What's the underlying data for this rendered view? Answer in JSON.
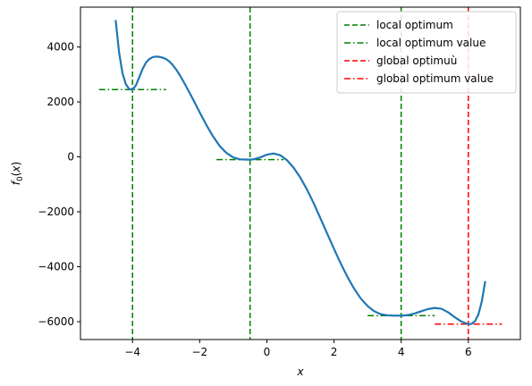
{
  "chart_data": {
    "type": "line",
    "xlabel": "x",
    "ylabel": "f_0(x)",
    "xlim": [
      -5.55,
      7.55
    ],
    "ylim": [
      -6650,
      5450
    ],
    "xticks": [
      -4,
      -2,
      0,
      2,
      4,
      6
    ],
    "xtick_labels": [
      "−4",
      "−2",
      "0",
      "2",
      "4",
      "6"
    ],
    "yticks": [
      -6000,
      -4000,
      -2000,
      0,
      2000,
      4000
    ],
    "ytick_labels": [
      "−6000",
      "−4000",
      "−2000",
      "0",
      "2000",
      "4000"
    ],
    "grid": false,
    "legend_placement": "top-right",
    "series": [
      {
        "kind": "curve",
        "color": "#1f77b4",
        "x": [
          -4.5,
          -4.4,
          -4.3,
          -4.2,
          -4.1,
          -4.0,
          -3.9,
          -3.8,
          -3.7,
          -3.6,
          -3.5,
          -3.4,
          -3.3,
          -3.2,
          -3.1,
          -3.0,
          -2.9,
          -2.8,
          -2.7,
          -2.6,
          -2.5,
          -2.4,
          -2.2,
          -2.0,
          -1.8,
          -1.6,
          -1.4,
          -1.2,
          -1.0,
          -0.8,
          -0.6,
          -0.5,
          -0.4,
          -0.2,
          0.0,
          0.2,
          0.4,
          0.6,
          0.8,
          1.0,
          1.2,
          1.4,
          1.6,
          1.8,
          2.0,
          2.2,
          2.4,
          2.6,
          2.8,
          3.0,
          3.2,
          3.4,
          3.6,
          3.8,
          4.0,
          4.2,
          4.4,
          4.6,
          4.8,
          5.0,
          5.2,
          5.4,
          5.6,
          5.8,
          6.0,
          6.1,
          6.2,
          6.3,
          6.4,
          6.5
        ],
        "y": [
          4950,
          3800,
          3050,
          2650,
          2470,
          2450,
          2600,
          2900,
          3200,
          3430,
          3560,
          3630,
          3650,
          3640,
          3610,
          3560,
          3470,
          3340,
          3180,
          2990,
          2780,
          2560,
          2100,
          1620,
          1160,
          740,
          390,
          140,
          -20,
          -90,
          -100,
          -100,
          -90,
          -20,
          80,
          120,
          60,
          -120,
          -400,
          -760,
          -1200,
          -1700,
          -2250,
          -2800,
          -3350,
          -3880,
          -4370,
          -4800,
          -5160,
          -5430,
          -5620,
          -5730,
          -5770,
          -5780,
          -5780,
          -5760,
          -5700,
          -5620,
          -5540,
          -5500,
          -5530,
          -5660,
          -5840,
          -6000,
          -6090,
          -6080,
          -5980,
          -5740,
          -5270,
          -4550
        ]
      }
    ],
    "vertical_lines": [
      {
        "x": -4,
        "color": "#008000",
        "style": "dashed",
        "series": "local optimum"
      },
      {
        "x": -0.5,
        "color": "#008000",
        "style": "dashed",
        "series": "local optimum"
      },
      {
        "x": 4,
        "color": "#008000",
        "style": "dashed",
        "series": "local optimum"
      },
      {
        "x": 6,
        "color": "#ff0000",
        "style": "dashed",
        "series": "global optimum"
      }
    ],
    "horizontal_segments": [
      {
        "x0": -5,
        "x1": -3,
        "y": 2450,
        "color": "#008000",
        "style": "dashdot",
        "series": "local optimum value"
      },
      {
        "x0": -1.5,
        "x1": 0.5,
        "y": -100,
        "color": "#008000",
        "style": "dashdot",
        "series": "local optimum value"
      },
      {
        "x0": 3,
        "x1": 5,
        "y": -5780,
        "color": "#008000",
        "style": "dashdot",
        "series": "local optimum value"
      },
      {
        "x0": 5,
        "x1": 7,
        "y": -6090,
        "color": "#ff0000",
        "style": "dashdot",
        "series": "global optimum value"
      }
    ],
    "legend": [
      {
        "label": "local optimum",
        "color": "#008000",
        "style": "dashed"
      },
      {
        "label": "local optimum value",
        "color": "#008000",
        "style": "dashdot"
      },
      {
        "label": "global optimuù",
        "color": "#ff0000",
        "style": "dashed"
      },
      {
        "label": "global optimum value",
        "color": "#ff0000",
        "style": "dashdot"
      }
    ]
  }
}
